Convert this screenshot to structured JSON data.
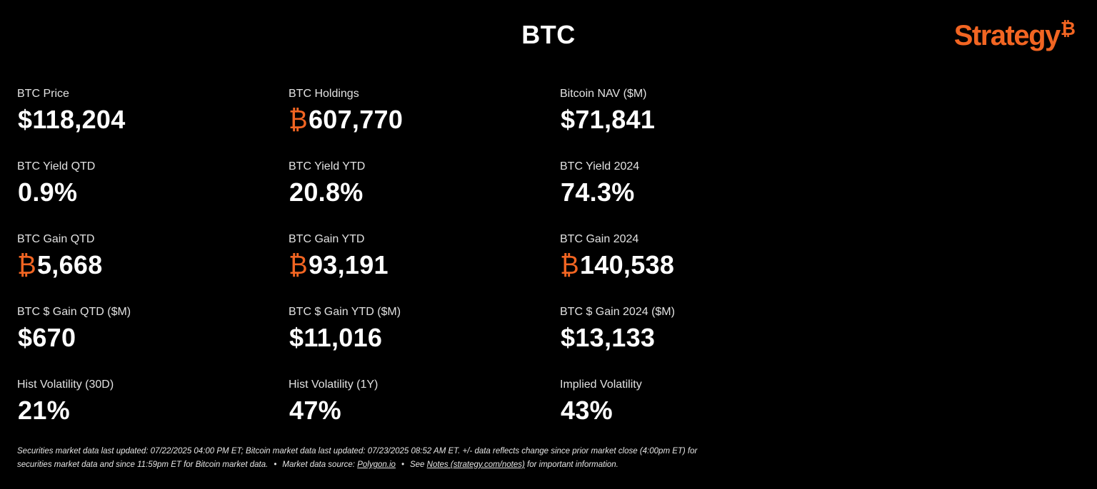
{
  "header": {
    "title": "BTC",
    "logo_text": "Strategy",
    "logo_mark": "₿"
  },
  "metrics": [
    {
      "label": "BTC Price",
      "prefix": "",
      "value": "$118,204"
    },
    {
      "label": "BTC Holdings",
      "prefix": "₿",
      "value": "607,770"
    },
    {
      "label": "Bitcoin NAV ($M)",
      "prefix": "",
      "value": "$71,841"
    },
    {
      "label": "BTC Yield QTD",
      "prefix": "",
      "value": "0.9%"
    },
    {
      "label": "BTC Yield YTD",
      "prefix": "",
      "value": "20.8%"
    },
    {
      "label": "BTC Yield 2024",
      "prefix": "",
      "value": "74.3%"
    },
    {
      "label": "BTC Gain QTD",
      "prefix": "₿",
      "value": "5,668"
    },
    {
      "label": "BTC Gain YTD",
      "prefix": "₿",
      "value": "93,191"
    },
    {
      "label": "BTC Gain 2024",
      "prefix": "₿",
      "value": "140,538"
    },
    {
      "label": "BTC $ Gain QTD ($M)",
      "prefix": "",
      "value": "$670"
    },
    {
      "label": "BTC $ Gain YTD ($M)",
      "prefix": "",
      "value": "$11,016"
    },
    {
      "label": "BTC $ Gain 2024 ($M)",
      "prefix": "",
      "value": "$13,133"
    },
    {
      "label": "Hist Volatility (30D)",
      "prefix": "",
      "value": "21%"
    },
    {
      "label": "Hist Volatility (1Y)",
      "prefix": "",
      "value": "47%"
    },
    {
      "label": "Implied Volatility",
      "prefix": "",
      "value": "43%"
    }
  ],
  "footer": {
    "line1": "Securities market data last updated: 07/22/2025 04:00 PM ET; Bitcoin market data last updated: 07/23/2025 08:52 AM ET. +/- data reflects change since prior market close (4:00pm ET) for",
    "line2_start": "securities market data and since 11:59pm ET for Bitcoin market data.",
    "bullet": "•",
    "source_label": "Market data source:",
    "source_link": "Polygon.io",
    "see": "See",
    "notes_link": "Notes (strategy.com/notes)",
    "notes_tail": "for important information."
  },
  "colors": {
    "background": "#000000",
    "text": "#ffffff",
    "accent": "#f26522"
  }
}
